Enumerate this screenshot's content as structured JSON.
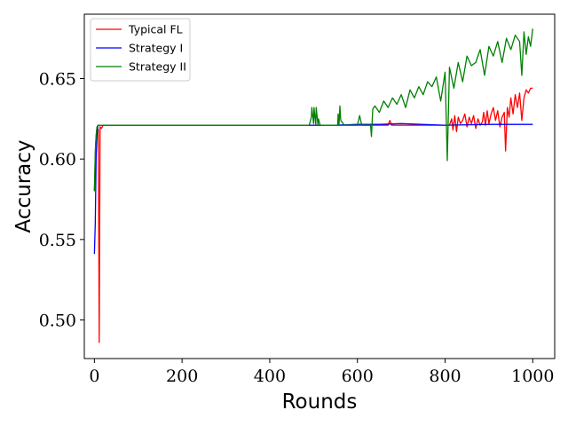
{
  "chart_data": {
    "type": "line",
    "xlabel": "Rounds",
    "ylabel": "Accuracy",
    "xlim": [
      -23,
      1050
    ],
    "ylim": [
      0.476,
      0.69
    ],
    "xticks": [
      0,
      200,
      400,
      600,
      800,
      1000
    ],
    "yticks": [
      0.5,
      0.55,
      0.6,
      0.65
    ],
    "xtick_labels": [
      "0",
      "200",
      "400",
      "600",
      "800",
      "1000"
    ],
    "ytick_labels": [
      "0.50",
      "0.55",
      "0.60",
      "0.65"
    ],
    "grid": false,
    "legend_position": "top-left",
    "series": [
      {
        "name": "Typical FL",
        "color": "#ff0000",
        "x": [
          0,
          3,
          6,
          9,
          11,
          13,
          16,
          20,
          30,
          100,
          200,
          300,
          400,
          500,
          600,
          670,
          674,
          678,
          680,
          700,
          750,
          780,
          800,
          810,
          815,
          818,
          822,
          826,
          830,
          835,
          840,
          845,
          850,
          855,
          860,
          865,
          870,
          875,
          880,
          885,
          888,
          892,
          896,
          900,
          905,
          910,
          915,
          920,
          925,
          930,
          935,
          938,
          942,
          946,
          950,
          955,
          960,
          965,
          970,
          975,
          980,
          985,
          990,
          995,
          1000
        ],
        "y": [
          0.58,
          0.61,
          0.62,
          0.618,
          0.486,
          0.62,
          0.619,
          0.621,
          0.621,
          0.621,
          0.621,
          0.621,
          0.621,
          0.621,
          0.621,
          0.621,
          0.624,
          0.621,
          0.621,
          0.621,
          0.621,
          0.621,
          0.621,
          0.621,
          0.625,
          0.618,
          0.627,
          0.617,
          0.626,
          0.622,
          0.624,
          0.628,
          0.62,
          0.626,
          0.622,
          0.627,
          0.619,
          0.625,
          0.621,
          0.623,
          0.629,
          0.621,
          0.63,
          0.622,
          0.628,
          0.632,
          0.624,
          0.63,
          0.62,
          0.626,
          0.629,
          0.605,
          0.632,
          0.626,
          0.638,
          0.628,
          0.64,
          0.632,
          0.641,
          0.624,
          0.638,
          0.643,
          0.641,
          0.644,
          0.644
        ]
      },
      {
        "name": "Strategy I",
        "color": "#0000ff",
        "x": [
          0,
          2,
          4,
          6,
          8,
          12,
          20,
          50,
          100,
          200,
          300,
          400,
          500,
          550,
          600,
          650,
          700,
          800,
          900,
          1000
        ],
        "y": [
          0.541,
          0.56,
          0.602,
          0.615,
          0.621,
          0.621,
          0.621,
          0.621,
          0.621,
          0.621,
          0.621,
          0.621,
          0.621,
          0.621,
          0.6215,
          0.6215,
          0.622,
          0.621,
          0.6215,
          0.6215
        ]
      },
      {
        "name": "Strategy II",
        "color": "#008000",
        "x": [
          0,
          2,
          4,
          6,
          10,
          20,
          100,
          200,
          300,
          400,
          490,
          495,
          496,
          500,
          501,
          505,
          506,
          510,
          511,
          515,
          520,
          540,
          550,
          555,
          556,
          558,
          560,
          562,
          570,
          580,
          590,
          600,
          605,
          610,
          620,
          630,
          632,
          635,
          640,
          650,
          660,
          670,
          680,
          690,
          700,
          710,
          720,
          730,
          740,
          750,
          760,
          770,
          780,
          790,
          800,
          805,
          810,
          820,
          830,
          840,
          850,
          860,
          870,
          880,
          890,
          900,
          910,
          920,
          930,
          940,
          950,
          960,
          970,
          975,
          980,
          985,
          990,
          995,
          1000
        ],
        "y": [
          0.58,
          0.605,
          0.615,
          0.62,
          0.621,
          0.621,
          0.621,
          0.621,
          0.621,
          0.621,
          0.621,
          0.626,
          0.632,
          0.622,
          0.632,
          0.621,
          0.632,
          0.621,
          0.625,
          0.621,
          0.621,
          0.621,
          0.621,
          0.621,
          0.628,
          0.621,
          0.633,
          0.624,
          0.621,
          0.621,
          0.621,
          0.621,
          0.627,
          0.621,
          0.621,
          0.621,
          0.614,
          0.631,
          0.633,
          0.629,
          0.636,
          0.632,
          0.638,
          0.634,
          0.64,
          0.632,
          0.643,
          0.638,
          0.645,
          0.64,
          0.648,
          0.645,
          0.651,
          0.636,
          0.654,
          0.599,
          0.657,
          0.644,
          0.66,
          0.648,
          0.664,
          0.658,
          0.66,
          0.668,
          0.652,
          0.67,
          0.664,
          0.673,
          0.66,
          0.675,
          0.668,
          0.677,
          0.673,
          0.652,
          0.679,
          0.665,
          0.676,
          0.67,
          0.681
        ]
      }
    ]
  }
}
